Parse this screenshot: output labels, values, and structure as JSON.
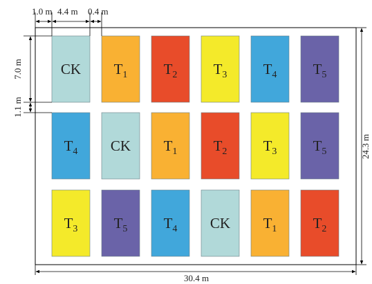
{
  "dimensions": {
    "edge_margin": "1.0 m",
    "plot_width": "4.4 m",
    "plot_spacing": "0.4 m",
    "plot_length": "7.0 m",
    "row_spacing": "1.1 m",
    "field_height": "24.3 m",
    "field_width": "30.4 m"
  },
  "treatment_colors": {
    "CK": "#b1d9d9",
    "T1": "#f9b133",
    "T2": "#e84c2a",
    "T3": "#f4ea2a",
    "T4": "#41a7db",
    "T5": "#6a63a8"
  },
  "rows": [
    [
      {
        "main": "CK",
        "sub": "",
        "key": "CK"
      },
      {
        "main": "T",
        "sub": "1",
        "key": "T1"
      },
      {
        "main": "T",
        "sub": "2",
        "key": "T2"
      },
      {
        "main": "T",
        "sub": "3",
        "key": "T3"
      },
      {
        "main": "T",
        "sub": "4",
        "key": "T4"
      },
      {
        "main": "T",
        "sub": "5",
        "key": "T5"
      }
    ],
    [
      {
        "main": "T",
        "sub": "4",
        "key": "T4"
      },
      {
        "main": "CK",
        "sub": "",
        "key": "CK"
      },
      {
        "main": "T",
        "sub": "1",
        "key": "T1"
      },
      {
        "main": "T",
        "sub": "2",
        "key": "T2"
      },
      {
        "main": "T",
        "sub": "3",
        "key": "T3"
      },
      {
        "main": "T",
        "sub": "5",
        "key": "T5"
      }
    ],
    [
      {
        "main": "T",
        "sub": "3",
        "key": "T3"
      },
      {
        "main": "T",
        "sub": "5",
        "key": "T5"
      },
      {
        "main": "T",
        "sub": "4",
        "key": "T4"
      },
      {
        "main": "CK",
        "sub": "",
        "key": "CK"
      },
      {
        "main": "T",
        "sub": "1",
        "key": "T1"
      },
      {
        "main": "T",
        "sub": "2",
        "key": "T2"
      }
    ]
  ]
}
